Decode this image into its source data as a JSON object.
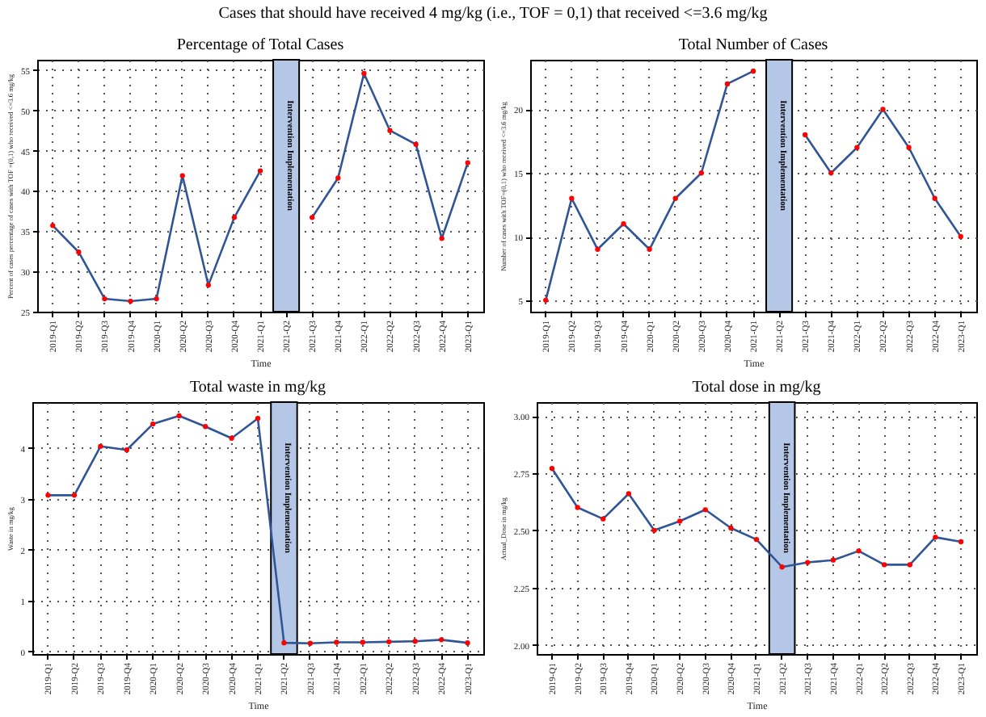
{
  "chart_data": [
    {
      "type": "line",
      "title": "Percentage of Total Cases",
      "annotations": [
        "Cases that should have received 4 mg/kg (i.e., TOF = 0,1) that received <=3.6 mg/kg"
      ],
      "xlabel": "Time",
      "ylabel": "Percent of cases percentage of cases with TOF =(0,1) who received <=3.6 mg/kg",
      "categories": [
        "2019-Q1",
        "2019-Q2",
        "2019-Q3",
        "2019-Q4",
        "2020-Q1",
        "2020-Q2",
        "2020-Q3",
        "2020-Q4",
        "2021-Q1",
        "2021-Q2",
        "2021-Q3",
        "2021-Q4",
        "2022-Q1",
        "2022-Q2",
        "2022-Q3",
        "2022-Q4",
        "2023-Q1"
      ],
      "series": [
        {
          "color": "#2f5597",
          "values": [
            35.7,
            32.4,
            26.6,
            26.3,
            26.6,
            41.9,
            28.3,
            36.7,
            42.5,
            null,
            36.7,
            41.6,
            54.6,
            47.5,
            45.8,
            34.1,
            43.5
          ]
        }
      ],
      "ylim": [
        25,
        56.3
      ],
      "yticks": [
        25,
        30,
        35,
        40,
        45,
        50,
        55
      ],
      "grid": true,
      "marker": "circle",
      "bands": [
        {
          "axis": "x",
          "from": "2021-Q2",
          "to": "2021-Q2",
          "label": "Intervention Implementation",
          "color": "#b4c7e7"
        }
      ]
    },
    {
      "type": "line",
      "title": "Total Number of Cases",
      "xlabel": "Time",
      "ylabel": "Number of cases with TOF=(0,1) who received <=3.6 mg/kg",
      "categories": [
        "2019-Q1",
        "2019-Q2",
        "2019-Q3",
        "2019-Q4",
        "2020-Q1",
        "2020-Q2",
        "2020-Q3",
        "2020-Q4",
        "2021-Q1",
        "2021-Q2",
        "2021-Q3",
        "2021-Q4",
        "2022-Q1",
        "2022-Q2",
        "2022-Q3",
        "2022-Q4",
        "2023-Q1"
      ],
      "series": [
        {
          "color": "#2f5597",
          "values": [
            5,
            13,
            9,
            11,
            9,
            13,
            15,
            22,
            23,
            null,
            18,
            15,
            17,
            20,
            17,
            13,
            10
          ]
        }
      ],
      "ylim": [
        4.1,
        23.9
      ],
      "yticks": [
        5,
        10,
        15,
        20
      ],
      "grid": true,
      "marker": "circle",
      "bands": [
        {
          "axis": "x",
          "from": "2021-Q2",
          "to": "2021-Q2",
          "label": "Intervention Implementation",
          "color": "#b4c7e7"
        }
      ]
    },
    {
      "type": "line",
      "title": "Total waste in mg/kg",
      "xlabel": "Time",
      "ylabel": "Waste in mg/kg",
      "categories": [
        "2019-Q1",
        "2019-Q2",
        "2019-Q3",
        "2019-Q4",
        "2020-Q1",
        "2020-Q2",
        "2020-Q3",
        "2020-Q4",
        "2021-Q1",
        "2021-Q2",
        "2021-Q3",
        "2021-Q4",
        "2022-Q1",
        "2022-Q2",
        "2022-Q3",
        "2022-Q4",
        "2023-Q1"
      ],
      "series": [
        {
          "color": "#2f5597",
          "values": [
            3.07,
            3.07,
            4.03,
            3.96,
            4.47,
            4.63,
            4.42,
            4.19,
            4.58,
            0.17,
            0.16,
            0.18,
            0.18,
            0.19,
            0.2,
            0.23,
            0.17
          ]
        }
      ],
      "ylim": [
        -0.05,
        4.9
      ],
      "yticks": [
        0,
        1,
        2,
        3,
        4
      ],
      "grid": true,
      "marker": "circle",
      "bands": [
        {
          "axis": "x",
          "from": "2021-Q2",
          "to": "2021-Q2",
          "label": "Intervention Implementation",
          "color": "#b4c7e7"
        }
      ]
    },
    {
      "type": "line",
      "title": "Total dose in mg/kg",
      "xlabel": "Time",
      "ylabel": "Actual_Dose in mg/kg",
      "categories": [
        "2019-Q1",
        "2019-Q2",
        "2019-Q3",
        "2019-Q4",
        "2020-Q1",
        "2020-Q2",
        "2020-Q3",
        "2020-Q4",
        "2021-Q1",
        "2021-Q2",
        "2021-Q3",
        "2021-Q4",
        "2022-Q1",
        "2022-Q2",
        "2022-Q3",
        "2022-Q4",
        "2023-Q1"
      ],
      "series": [
        {
          "color": "#2f5597",
          "values": [
            2.77,
            2.6,
            2.55,
            2.66,
            2.5,
            2.54,
            2.59,
            2.51,
            2.46,
            2.34,
            2.36,
            2.37,
            2.41,
            2.35,
            2.35,
            2.47,
            2.45
          ]
        }
      ],
      "ylim": [
        1.96,
        3.06
      ],
      "yticks": [
        {
          "value": 2,
          "label": "2.00"
        },
        {
          "value": 2.25,
          "label": "2.25"
        },
        {
          "value": 2.5,
          "label": "2.50"
        },
        {
          "value": 2.75,
          "label": "2.75"
        },
        {
          "value": 3,
          "label": "3.00"
        }
      ],
      "grid": true,
      "marker": "circle",
      "bands": [
        {
          "axis": "x",
          "from": "2021-Q2",
          "to": "2021-Q2",
          "label": "Intervention Implementation",
          "color": "#b4c7e7"
        }
      ]
    }
  ]
}
